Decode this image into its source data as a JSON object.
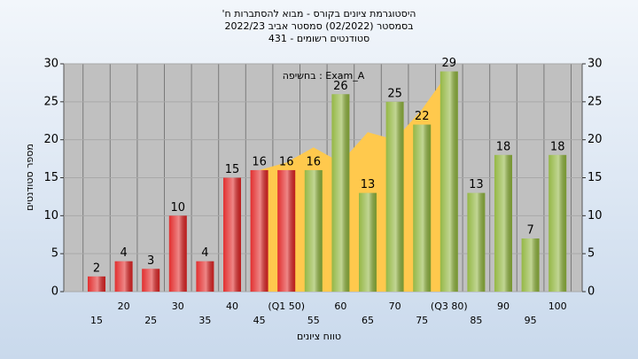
{
  "chart_data": {
    "type": "bar",
    "title": [
      "היסטוגרמת ציונים בקורס - מבוא להסתברות ח'",
      "בסמסטר (02/2022) סמסטר אביב 2022/23",
      "סטודנטים רשומים - 431"
    ],
    "annotation": "בחשיפה : Exam_A",
    "x_label": "טווח ציונים",
    "y_label": "מספר סטודנטים",
    "categories": [
      "15",
      "20",
      "25",
      "30",
      "35",
      "40",
      "45",
      "(Q1 50)",
      "55",
      "60",
      "65",
      "70",
      "75",
      "(Q3 80)",
      "85",
      "90",
      "95",
      "100"
    ],
    "values": [
      2,
      4,
      3,
      10,
      4,
      15,
      16,
      16,
      16,
      26,
      13,
      25,
      22,
      29,
      13,
      18,
      7,
      18
    ],
    "colors": [
      "#e02424",
      "#e02424",
      "#e02424",
      "#e02424",
      "#e02424",
      "#e02424",
      "#e02424",
      "#e02424",
      "#8fb43c",
      "#8fb43c",
      "#8fb43c",
      "#8fb43c",
      "#8fb43c",
      "#8fb43c",
      "#8fb43c",
      "#8fb43c",
      "#8fb43c",
      "#8fb43c"
    ],
    "band": [
      null,
      null,
      null,
      null,
      null,
      null,
      16,
      17,
      19,
      17,
      21,
      20,
      24,
      29,
      null,
      null,
      null,
      null
    ],
    "band_color": "#ffc94d",
    "ylim": [
      0,
      30
    ],
    "yticks": [
      0,
      5,
      10,
      15,
      20,
      25,
      30
    ],
    "y2lim": [
      0,
      30
    ],
    "y2ticks": [
      0,
      5,
      10,
      15,
      20,
      25,
      30
    ],
    "grid": true
  }
}
